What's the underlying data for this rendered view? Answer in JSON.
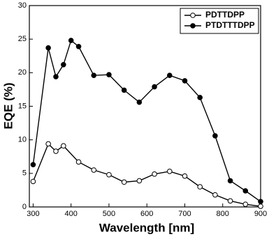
{
  "chart_data": {
    "type": "line",
    "xlabel": "Wavelength [nm]",
    "ylabel": "EQE (%)",
    "xlim": [
      290,
      900
    ],
    "ylim": [
      0,
      30
    ],
    "xticks": [
      300,
      400,
      500,
      600,
      700,
      800,
      900
    ],
    "yticks": [
      0,
      5,
      10,
      15,
      20,
      25,
      30
    ],
    "legend": "upper right",
    "series": [
      {
        "name": "PDTTDPP",
        "color": "#000000",
        "marker": "open",
        "x": [
          300,
          340,
          360,
          380,
          420,
          460,
          500,
          540,
          580,
          620,
          660,
          700,
          740,
          780,
          820,
          860,
          900
        ],
        "values": [
          3.8,
          9.4,
          8.3,
          9.1,
          6.7,
          5.5,
          4.8,
          3.7,
          3.9,
          4.9,
          5.3,
          4.6,
          3.0,
          1.8,
          0.9,
          0.4,
          0.1
        ]
      },
      {
        "name": "PTDTTTDPP",
        "color": "#000000",
        "marker": "filled",
        "x": [
          300,
          340,
          360,
          380,
          400,
          420,
          460,
          500,
          540,
          580,
          620,
          660,
          700,
          740,
          780,
          820,
          860,
          900
        ],
        "values": [
          6.3,
          23.7,
          19.4,
          21.2,
          24.8,
          23.9,
          19.6,
          19.7,
          17.4,
          15.6,
          17.9,
          19.6,
          18.8,
          16.3,
          10.6,
          3.9,
          2.4,
          0.8
        ]
      }
    ]
  }
}
